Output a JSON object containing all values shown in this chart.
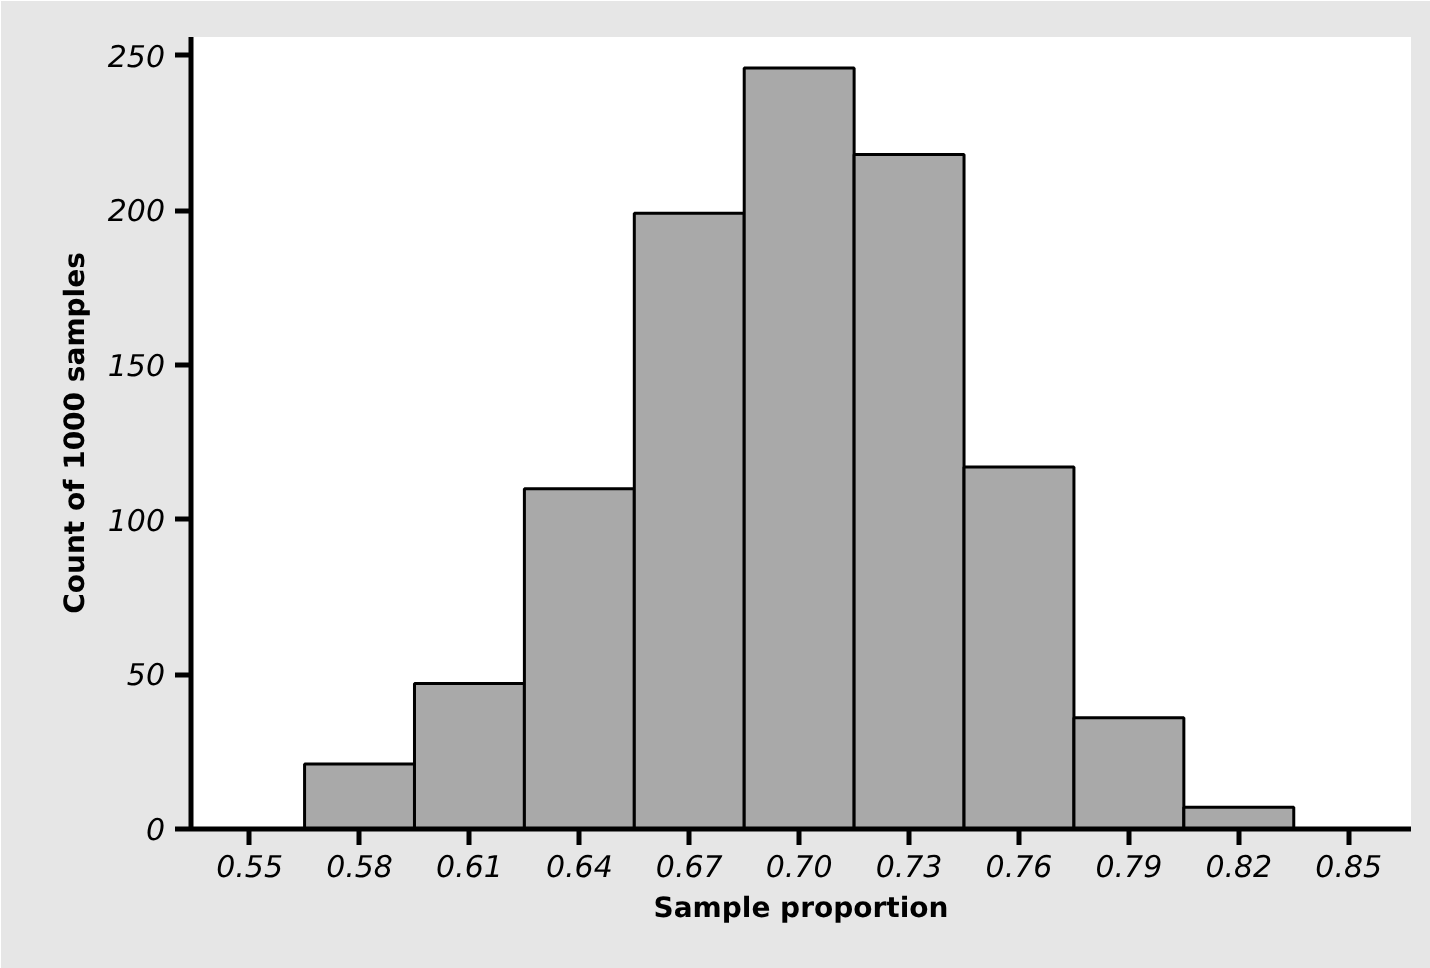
{
  "chart_data": {
    "type": "histogram",
    "xlabel": "Sample proportion",
    "ylabel": "Count of 1000 samples",
    "bins": [
      0.565,
      0.595,
      0.625,
      0.655,
      0.685,
      0.715,
      0.745,
      0.775,
      0.805,
      0.835
    ],
    "values": [
      21,
      47,
      110,
      199,
      246,
      218,
      117,
      36,
      7
    ],
    "color": "#a9a9a9",
    "xlim": [
      0.534,
      0.867
    ],
    "ylim": [
      0,
      256
    ],
    "xticks": [
      {
        "value": 0.55,
        "label": "0.55"
      },
      {
        "value": 0.58,
        "label": "0.58"
      },
      {
        "value": 0.61,
        "label": "0.61"
      },
      {
        "value": 0.64,
        "label": "0.64"
      },
      {
        "value": 0.67,
        "label": "0.67"
      },
      {
        "value": 0.7,
        "label": "0.70"
      },
      {
        "value": 0.73,
        "label": "0.73"
      },
      {
        "value": 0.76,
        "label": "0.76"
      },
      {
        "value": 0.79,
        "label": "0.79"
      },
      {
        "value": 0.82,
        "label": "0.82"
      },
      {
        "value": 0.85,
        "label": "0.85"
      }
    ],
    "yticks": [
      0,
      50,
      100,
      150,
      200,
      250
    ],
    "grid": false
  }
}
